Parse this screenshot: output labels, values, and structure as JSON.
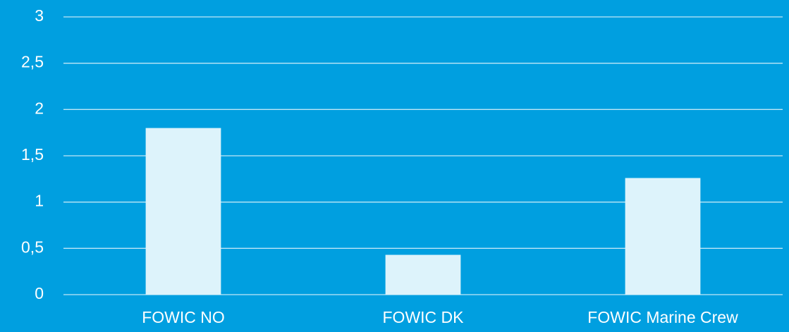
{
  "chart_data": {
    "type": "bar",
    "categories": [
      "FOWIC NO",
      "FOWIC DK",
      "FOWIC Marine Crew"
    ],
    "values": [
      1.8,
      0.43,
      1.26
    ],
    "color": "#ddf3fb",
    "ylim": [
      0,
      3
    ],
    "yticks": [
      0,
      {
        "value": 0.5,
        "label": "0,5"
      },
      1,
      {
        "value": 1.5,
        "label": "1,5"
      },
      2,
      {
        "value": 2.5,
        "label": "2,5"
      },
      3
    ],
    "grid": true
  }
}
